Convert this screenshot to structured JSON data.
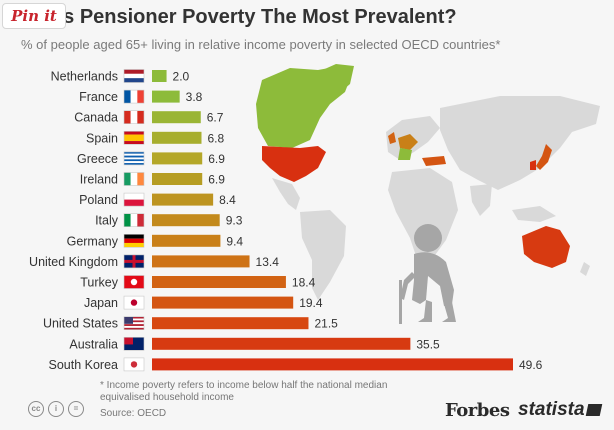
{
  "pin_button": {
    "label": "Pin it"
  },
  "chart_data": {
    "type": "bar",
    "orientation": "horizontal",
    "title": "ere Is Pensioner Poverty The Most Prevalent?",
    "subtitle": "% of people aged 65+ living in relative income poverty in selected OECD countries*",
    "categories": [
      "Netherlands",
      "France",
      "Canada",
      "Spain",
      "Greece",
      "Ireland",
      "Poland",
      "Italy",
      "Germany",
      "United Kingdom",
      "Turkey",
      "Japan",
      "United States",
      "Australia",
      "South Korea"
    ],
    "values": [
      2.0,
      3.8,
      6.7,
      6.8,
      6.9,
      6.9,
      8.4,
      9.3,
      9.4,
      13.4,
      18.4,
      19.4,
      21.5,
      35.5,
      49.6
    ],
    "value_labels": [
      "2.0",
      "3.8",
      "6.7",
      "6.8",
      "6.9",
      "6.9",
      "8.4",
      "9.3",
      "9.4",
      "13.4",
      "18.4",
      "19.4",
      "21.5",
      "35.5",
      "49.6"
    ],
    "bar_colors": [
      "#8dbb3a",
      "#8dbb3a",
      "#9ab534",
      "#a7ae2e",
      "#b4a728",
      "#b69d23",
      "#bd9420",
      "#c38a1c",
      "#c98018",
      "#ce7316",
      "#d26313",
      "#d45512",
      "#d74811",
      "#d73a11",
      "#d83010"
    ],
    "xlim": [
      0,
      50
    ],
    "grid": false,
    "legend": "none",
    "map_highlight_colors": {
      "low": "#8dbb3a",
      "mid": "#c98018",
      "high": "#d83010",
      "base": "#d9d9d9"
    }
  },
  "footnote": "* Income poverty refers to income below half the national median equivalised household income",
  "source": "Source: OECD",
  "logos": {
    "forbes": "Forbes",
    "statista": "statista"
  },
  "icons": [
    "creative-commons-icon",
    "attribution-icon",
    "equals-icon",
    "flag-icons"
  ]
}
